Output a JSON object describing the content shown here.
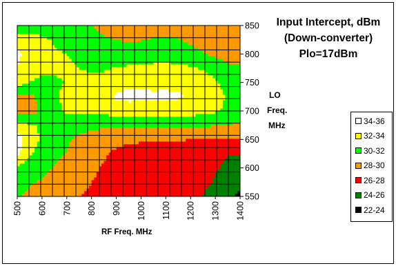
{
  "chart_data": {
    "type": "heatmap",
    "title_lines": [
      "Input Intercept, dBm",
      "(Down-converter)",
      "Plo=17dBm"
    ],
    "xlabel": "RF Freq. MHz",
    "ylabel_lines": [
      "LO",
      "Freq.",
      "MHz"
    ],
    "x_ticks": [
      "500",
      "600",
      "700",
      "800",
      "900",
      "1000",
      "1100",
      "1200",
      "1300",
      "1400"
    ],
    "y_ticks": [
      "850",
      "800",
      "750",
      "700",
      "650",
      "600",
      "550"
    ],
    "xlim": [
      500,
      1400
    ],
    "ylim": [
      550,
      850
    ],
    "grid": true,
    "legend_position": "right",
    "levels": [
      {
        "label": "34-36",
        "color": "#ffffff"
      },
      {
        "label": "32-34",
        "color": "#ffff00"
      },
      {
        "label": "30-32",
        "color": "#00ff00"
      },
      {
        "label": "28-30",
        "color": "#ff9900"
      },
      {
        "label": "26-28",
        "color": "#ff0000"
      },
      {
        "label": "24-26",
        "color": "#008000"
      },
      {
        "label": "22-24",
        "color": "#000000"
      }
    ],
    "x": [
      500,
      550,
      600,
      650,
      700,
      750,
      800,
      850,
      900,
      950,
      1000,
      1050,
      1100,
      1150,
      1200,
      1250,
      1300,
      1350,
      1400
    ],
    "y": [
      550,
      575,
      600,
      625,
      650,
      675,
      700,
      725,
      750,
      775,
      800,
      825,
      850
    ],
    "z": [
      [
        30.2,
        29.5,
        29.1,
        28.7,
        28.4,
        28.0,
        27.7,
        27.4,
        27.2,
        27.0,
        26.9,
        26.7,
        26.6,
        26.5,
        26.3,
        26.0,
        25.3,
        24.5,
        23.5
      ],
      [
        30.8,
        30.2,
        29.8,
        29.3,
        28.9,
        28.5,
        28.0,
        27.6,
        27.4,
        27.2,
        27.0,
        26.9,
        26.8,
        26.7,
        26.6,
        26.4,
        25.8,
        25.0,
        24.5
      ],
      [
        31.6,
        31.0,
        30.4,
        29.9,
        29.5,
        29.0,
        28.4,
        27.8,
        27.5,
        27.3,
        27.1,
        27.0,
        26.9,
        26.8,
        26.7,
        26.6,
        26.2,
        25.5,
        25.2
      ],
      [
        34.5,
        32.2,
        31.3,
        30.4,
        29.9,
        29.3,
        28.8,
        28.2,
        27.7,
        27.4,
        27.2,
        27.1,
        27.0,
        26.9,
        26.8,
        26.7,
        26.5,
        26.1,
        26.0
      ],
      [
        35.0,
        32.7,
        31.8,
        30.8,
        30.2,
        29.6,
        29.1,
        28.6,
        28.4,
        28.3,
        28.2,
        28.2,
        28.2,
        28.1,
        28.0,
        28.0,
        27.9,
        27.9,
        27.9
      ],
      [
        33.3,
        32.3,
        31.7,
        31.1,
        30.9,
        30.6,
        30.5,
        30.4,
        30.3,
        30.3,
        30.3,
        30.3,
        30.3,
        30.3,
        30.2,
        30.2,
        30.1,
        29.9,
        29.7
      ],
      [
        29.4,
        29.2,
        30.3,
        31.6,
        32.2,
        32.3,
        32.3,
        32.5,
        32.9,
        33.0,
        33.0,
        33.0,
        33.0,
        32.9,
        32.8,
        32.6,
        32.2,
        31.6,
        31.0
      ],
      [
        29.1,
        29.4,
        30.8,
        31.8,
        32.4,
        32.9,
        33.1,
        33.4,
        34.3,
        34.5,
        34.3,
        34.2,
        34.3,
        34.2,
        33.8,
        33.3,
        32.7,
        31.8,
        31.2
      ],
      [
        33.0,
        32.0,
        31.4,
        31.7,
        32.1,
        32.4,
        32.6,
        32.8,
        33.3,
        33.7,
        33.8,
        33.7,
        33.7,
        33.6,
        33.2,
        32.8,
        32.2,
        31.4,
        31.0
      ],
      [
        34.0,
        33.0,
        32.5,
        32.3,
        32.2,
        32.0,
        31.8,
        31.8,
        32.1,
        32.3,
        32.4,
        32.5,
        32.5,
        32.4,
        32.2,
        31.9,
        31.4,
        30.6,
        30.4
      ],
      [
        34.5,
        33.0,
        32.4,
        32.1,
        32.0,
        31.8,
        31.4,
        31.1,
        31.0,
        30.9,
        31.0,
        31.2,
        31.3,
        31.2,
        30.8,
        30.2,
        29.6,
        29.0,
        28.5
      ],
      [
        32.6,
        32.4,
        32.2,
        31.9,
        31.6,
        31.1,
        30.5,
        30.2,
        30.0,
        29.8,
        29.9,
        30.2,
        30.3,
        30.1,
        29.6,
        29.0,
        28.6,
        28.3,
        28.0
      ],
      [
        31.4,
        31.5,
        31.5,
        31.3,
        30.8,
        30.4,
        30.0,
        29.6,
        29.3,
        29.1,
        29.0,
        29.2,
        29.4,
        29.3,
        29.0,
        28.6,
        28.3,
        28.1,
        28.0
      ]
    ]
  }
}
